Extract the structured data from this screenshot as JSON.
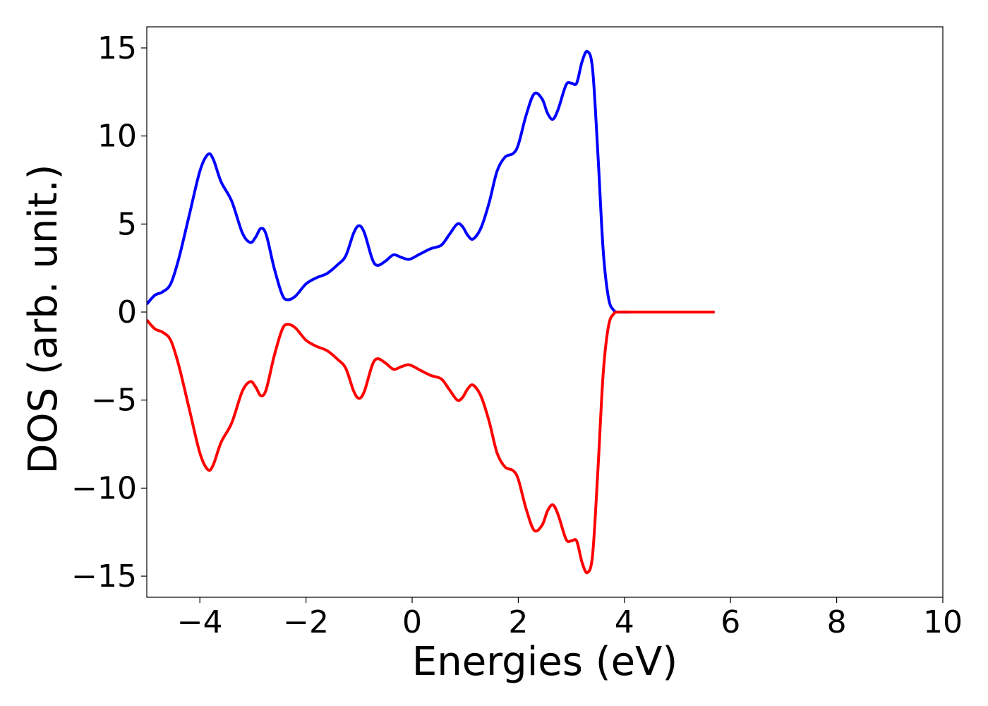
{
  "chart_data": {
    "type": "line",
    "xlabel": "Energies (eV)",
    "ylabel": "DOS (arb. unit.)",
    "xlim": [
      -5,
      10
    ],
    "ylim": [
      -16.2,
      16.2
    ],
    "grid": false,
    "legend": "none",
    "x_ticks": [
      -4,
      -2,
      0,
      2,
      4,
      6,
      8,
      10
    ],
    "x_tick_labels": [
      "−4",
      "−2",
      "0",
      "2",
      "4",
      "6",
      "8",
      "10"
    ],
    "y_ticks": [
      15,
      10,
      5,
      0,
      -5,
      -10,
      -15
    ],
    "y_tick_labels": [
      "15",
      "10",
      "5",
      "0",
      "−5",
      "−10",
      "−15"
    ],
    "series": [
      {
        "color": "#0000ff",
        "points": [
          [
            -5.0,
            0.45
          ],
          [
            -4.85,
            0.95
          ],
          [
            -4.7,
            1.15
          ],
          [
            -4.55,
            1.6
          ],
          [
            -4.4,
            3.0
          ],
          [
            -4.2,
            5.5
          ],
          [
            -4.0,
            8.0
          ],
          [
            -3.85,
            8.95
          ],
          [
            -3.75,
            8.7
          ],
          [
            -3.6,
            7.4
          ],
          [
            -3.4,
            6.3
          ],
          [
            -3.2,
            4.5
          ],
          [
            -3.05,
            3.95
          ],
          [
            -2.95,
            4.25
          ],
          [
            -2.85,
            4.75
          ],
          [
            -2.75,
            4.4
          ],
          [
            -2.6,
            2.5
          ],
          [
            -2.45,
            1.0
          ],
          [
            -2.35,
            0.7
          ],
          [
            -2.2,
            0.9
          ],
          [
            -2.0,
            1.6
          ],
          [
            -1.8,
            1.95
          ],
          [
            -1.6,
            2.2
          ],
          [
            -1.4,
            2.7
          ],
          [
            -1.25,
            3.2
          ],
          [
            -1.1,
            4.5
          ],
          [
            -1.0,
            4.9
          ],
          [
            -0.9,
            4.5
          ],
          [
            -0.75,
            3.0
          ],
          [
            -0.65,
            2.65
          ],
          [
            -0.5,
            2.9
          ],
          [
            -0.35,
            3.25
          ],
          [
            -0.2,
            3.1
          ],
          [
            -0.05,
            3.0
          ],
          [
            0.15,
            3.3
          ],
          [
            0.35,
            3.6
          ],
          [
            0.55,
            3.8
          ],
          [
            0.7,
            4.4
          ],
          [
            0.85,
            5.0
          ],
          [
            0.95,
            4.85
          ],
          [
            1.05,
            4.35
          ],
          [
            1.15,
            4.15
          ],
          [
            1.3,
            4.8
          ],
          [
            1.45,
            6.2
          ],
          [
            1.6,
            8.0
          ],
          [
            1.75,
            8.8
          ],
          [
            1.9,
            9.0
          ],
          [
            2.0,
            9.5
          ],
          [
            2.15,
            11.2
          ],
          [
            2.3,
            12.4
          ],
          [
            2.45,
            12.1
          ],
          [
            2.55,
            11.3
          ],
          [
            2.65,
            10.95
          ],
          [
            2.75,
            11.5
          ],
          [
            2.9,
            12.9
          ],
          [
            3.0,
            13.0
          ],
          [
            3.1,
            13.0
          ],
          [
            3.2,
            14.2
          ],
          [
            3.3,
            14.8
          ],
          [
            3.4,
            13.8
          ],
          [
            3.5,
            9.0
          ],
          [
            3.6,
            3.5
          ],
          [
            3.7,
            0.8
          ],
          [
            3.8,
            0.1
          ],
          [
            3.9,
            0.0
          ],
          [
            4.2,
            0.0
          ],
          [
            5.0,
            0.0
          ],
          [
            5.7,
            0.0
          ]
        ]
      },
      {
        "color": "#ff0000",
        "points": [
          [
            -5.0,
            -0.45
          ],
          [
            -4.85,
            -0.95
          ],
          [
            -4.7,
            -1.15
          ],
          [
            -4.55,
            -1.6
          ],
          [
            -4.4,
            -3.0
          ],
          [
            -4.2,
            -5.5
          ],
          [
            -4.0,
            -8.0
          ],
          [
            -3.85,
            -8.95
          ],
          [
            -3.75,
            -8.7
          ],
          [
            -3.6,
            -7.4
          ],
          [
            -3.4,
            -6.3
          ],
          [
            -3.2,
            -4.5
          ],
          [
            -3.05,
            -3.95
          ],
          [
            -2.95,
            -4.25
          ],
          [
            -2.85,
            -4.75
          ],
          [
            -2.75,
            -4.4
          ],
          [
            -2.6,
            -2.5
          ],
          [
            -2.45,
            -1.0
          ],
          [
            -2.35,
            -0.7
          ],
          [
            -2.2,
            -0.9
          ],
          [
            -2.0,
            -1.6
          ],
          [
            -1.8,
            -1.95
          ],
          [
            -1.6,
            -2.2
          ],
          [
            -1.4,
            -2.7
          ],
          [
            -1.25,
            -3.2
          ],
          [
            -1.1,
            -4.5
          ],
          [
            -1.0,
            -4.9
          ],
          [
            -0.9,
            -4.5
          ],
          [
            -0.75,
            -3.0
          ],
          [
            -0.65,
            -2.65
          ],
          [
            -0.5,
            -2.9
          ],
          [
            -0.35,
            -3.25
          ],
          [
            -0.2,
            -3.1
          ],
          [
            -0.05,
            -3.0
          ],
          [
            0.15,
            -3.3
          ],
          [
            0.35,
            -3.6
          ],
          [
            0.55,
            -3.8
          ],
          [
            0.7,
            -4.4
          ],
          [
            0.85,
            -5.0
          ],
          [
            0.95,
            -4.85
          ],
          [
            1.05,
            -4.35
          ],
          [
            1.15,
            -4.15
          ],
          [
            1.3,
            -4.8
          ],
          [
            1.45,
            -6.2
          ],
          [
            1.6,
            -8.0
          ],
          [
            1.75,
            -8.8
          ],
          [
            1.9,
            -9.0
          ],
          [
            2.0,
            -9.5
          ],
          [
            2.15,
            -11.2
          ],
          [
            2.3,
            -12.4
          ],
          [
            2.45,
            -12.1
          ],
          [
            2.55,
            -11.3
          ],
          [
            2.65,
            -10.95
          ],
          [
            2.75,
            -11.5
          ],
          [
            2.9,
            -12.9
          ],
          [
            3.0,
            -13.0
          ],
          [
            3.1,
            -13.0
          ],
          [
            3.2,
            -14.2
          ],
          [
            3.3,
            -14.8
          ],
          [
            3.4,
            -13.8
          ],
          [
            3.5,
            -9.0
          ],
          [
            3.6,
            -3.5
          ],
          [
            3.7,
            -0.8
          ],
          [
            3.8,
            -0.1
          ],
          [
            3.9,
            0.0
          ],
          [
            4.2,
            0.0
          ],
          [
            5.0,
            0.0
          ],
          [
            5.7,
            0.0
          ]
        ]
      }
    ]
  }
}
